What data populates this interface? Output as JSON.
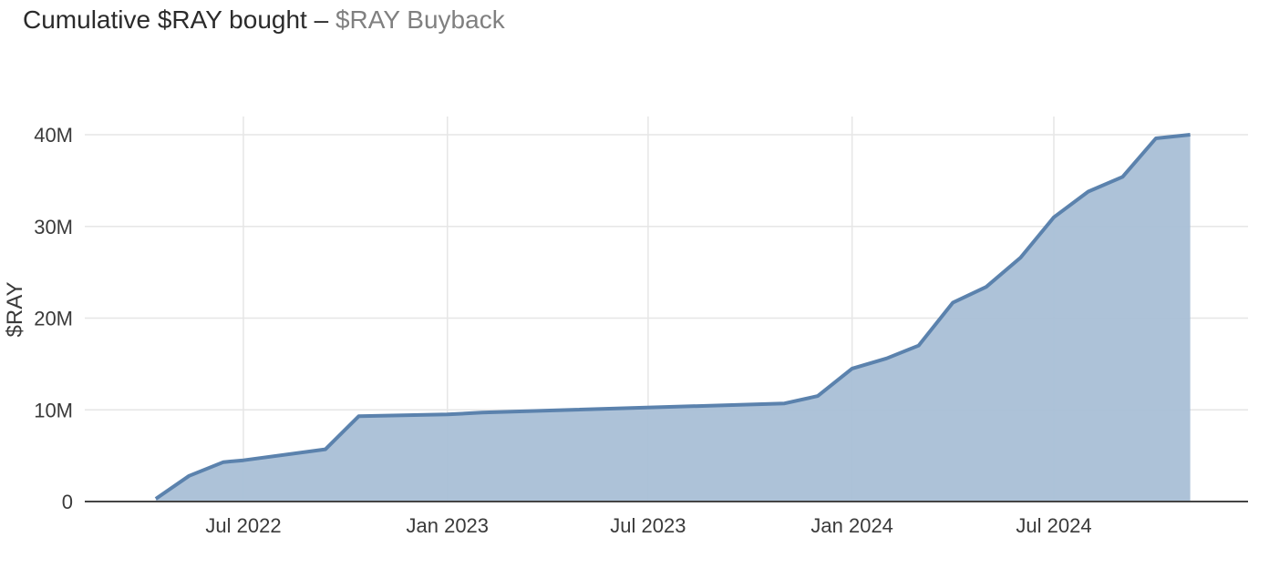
{
  "header": {
    "title": "Cumulative $RAY bought",
    "separator": "–",
    "subtitle": "$RAY Buyback"
  },
  "chart_data": {
    "type": "area",
    "ylabel": "$RAY",
    "xlabel": "",
    "ylim": [
      0,
      42000000
    ],
    "xlim": [
      "2022-03-10",
      "2024-12-25"
    ],
    "grid": true,
    "colors": {
      "line": "#5b82ad",
      "fill": "#a9bfd6"
    },
    "x_ticks": [
      {
        "date": "2022-07-01",
        "label": "Jul 2022"
      },
      {
        "date": "2023-01-01",
        "label": "Jan 2023"
      },
      {
        "date": "2023-07-01",
        "label": "Jul 2023"
      },
      {
        "date": "2024-01-01",
        "label": "Jan 2024"
      },
      {
        "date": "2024-07-01",
        "label": "Jul 2024"
      }
    ],
    "y_ticks": [
      {
        "value": 0,
        "label": "0"
      },
      {
        "value": 10000000,
        "label": "10M"
      },
      {
        "value": 20000000,
        "label": "20M"
      },
      {
        "value": 30000000,
        "label": "30M"
      },
      {
        "value": 40000000,
        "label": "40M"
      }
    ],
    "series": [
      {
        "x": [
          "2022-04-13",
          "2022-05-13",
          "2022-06-13",
          "2022-07-01",
          "2022-09-13",
          "2022-10-13",
          "2023-01-01",
          "2023-02-01",
          "2023-11-01",
          "2023-12-01",
          "2024-01-01",
          "2024-02-01",
          "2024-03-01",
          "2024-04-01",
          "2024-05-01",
          "2024-06-01",
          "2024-07-01",
          "2024-08-01",
          "2024-09-01",
          "2024-10-01",
          "2024-11-01"
        ],
        "values": [
          300000,
          2800000,
          4300000,
          4500000,
          5700000,
          9300000,
          9500000,
          9700000,
          10700000,
          11500000,
          14500000,
          15600000,
          17000000,
          21700000,
          23400000,
          26600000,
          31000000,
          33800000,
          35400000,
          39600000,
          40000000
        ]
      }
    ]
  }
}
